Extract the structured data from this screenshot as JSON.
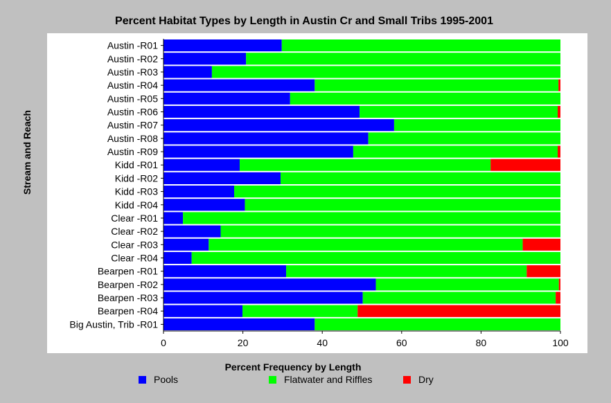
{
  "chart_data": {
    "type": "bar",
    "orientation": "horizontal",
    "stacked": true,
    "title": "Percent Habitat Types by Length in Austin Cr and Small Tribs 1995-2001",
    "xlabel": "Percent Frequency by Length",
    "ylabel": "Stream and Reach",
    "xlim": [
      0,
      100
    ],
    "xticks": [
      0,
      20,
      40,
      60,
      80,
      100
    ],
    "grid": false,
    "legend_position": "bottom",
    "categories": [
      "Austin -R01",
      "Austin -R02",
      "Austin -R03",
      "Austin -R04",
      "Austin -R05",
      "Austin -R06",
      "Austin -R07",
      "Austin -R08",
      "Austin -R09",
      "Kidd -R01",
      "Kidd -R02",
      "Kidd -R03",
      "Kidd -R04",
      "Clear -R01",
      "Clear -R02",
      "Clear -R03",
      "Clear -R04",
      "Bearpen -R01",
      "Bearpen -R02",
      "Bearpen -R03",
      "Bearpen -R04",
      "Big Austin, Trib -R01"
    ],
    "series": [
      {
        "name": "Pools",
        "color": "#0000ff",
        "values": [
          29.8,
          20.8,
          12.2,
          38.1,
          31.9,
          49.4,
          58.1,
          51.6,
          47.8,
          19.2,
          29.5,
          17.8,
          20.5,
          4.9,
          14.4,
          11.4,
          7.1,
          30.9,
          53.5,
          50.2,
          19.9,
          38.1
        ]
      },
      {
        "name": "Flatwater and Riffles",
        "color": "#00ff00",
        "values": [
          70.2,
          79.2,
          87.8,
          61.4,
          68.1,
          49.9,
          41.9,
          48.4,
          51.5,
          63.2,
          70.5,
          82.2,
          79.5,
          95.1,
          85.6,
          79.1,
          92.9,
          60.6,
          46.1,
          48.6,
          29.0,
          61.9
        ]
      },
      {
        "name": "Dry",
        "color": "#ff0000",
        "values": [
          0,
          0,
          0,
          0.5,
          0,
          0.7,
          0,
          0,
          0.7,
          17.6,
          0,
          0,
          0,
          0,
          0,
          9.5,
          0,
          8.5,
          0.4,
          1.2,
          51.1,
          0
        ]
      }
    ]
  }
}
